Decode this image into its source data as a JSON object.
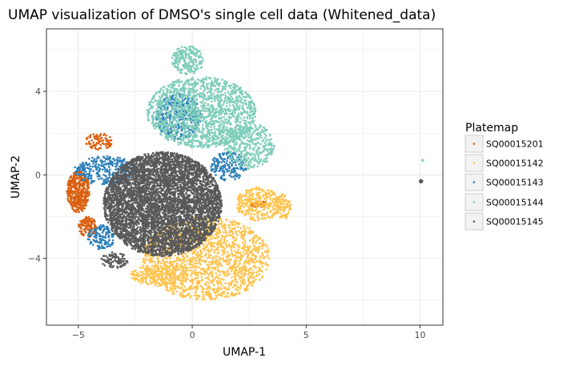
{
  "chart_data": {
    "type": "scatter",
    "title": "UMAP visualization of DMSO's single cell data (Whitened_data)",
    "xlabel": "UMAP-1",
    "ylabel": "UMAP-2",
    "xlim": [
      -6.4,
      11.0
    ],
    "ylim": [
      -7.2,
      7.0
    ],
    "x_ticks": [
      -5,
      0,
      5,
      10
    ],
    "x_tick_labels": [
      "−5",
      "0",
      "5",
      "10"
    ],
    "y_ticks": [
      -4,
      0,
      4
    ],
    "y_tick_labels": [
      "−4",
      "0",
      "4"
    ],
    "grid": true,
    "legend_placement": "right",
    "legend": {
      "title": "Platemap",
      "entries": [
        "SQ00015201",
        "SQ00015142",
        "SQ00015143",
        "SQ00015144",
        "SQ00015145"
      ]
    },
    "series": [
      {
        "name": "SQ00015201",
        "color": "#d95f0e",
        "regions": [
          {
            "cx": -5.0,
            "cy": -0.8,
            "rx": 0.5,
            "ry": 1.0,
            "n": 380
          },
          {
            "cx": -4.6,
            "cy": -2.5,
            "rx": 0.4,
            "ry": 0.5,
            "n": 120
          },
          {
            "cx": -4.1,
            "cy": 1.6,
            "rx": 0.6,
            "ry": 0.4,
            "n": 90
          },
          {
            "cx": 2.9,
            "cy": -1.4,
            "rx": 0.35,
            "ry": 0.15,
            "n": 50
          }
        ]
      },
      {
        "name": "SQ00015142",
        "color": "#fec44f",
        "regions": [
          {
            "cx": 0.6,
            "cy": -4.0,
            "rx": 2.8,
            "ry": 2.0,
            "n": 1700
          },
          {
            "cx": 2.9,
            "cy": -1.4,
            "rx": 1.0,
            "ry": 0.8,
            "n": 320
          },
          {
            "cx": 4.0,
            "cy": -1.5,
            "rx": 0.35,
            "ry": 0.6,
            "n": 90
          },
          {
            "cx": -1.5,
            "cy": -4.8,
            "rx": 1.2,
            "ry": 0.5,
            "n": 220
          }
        ]
      },
      {
        "name": "SQ00015143",
        "color": "#2c7fb8",
        "regions": [
          {
            "cx": -3.8,
            "cy": 0.2,
            "rx": 1.4,
            "ry": 0.7,
            "n": 320
          },
          {
            "cx": -0.6,
            "cy": 2.8,
            "rx": 1.0,
            "ry": 1.1,
            "n": 360
          },
          {
            "cx": 1.6,
            "cy": 0.4,
            "rx": 0.8,
            "ry": 0.7,
            "n": 180
          },
          {
            "cx": -4.0,
            "cy": -3.0,
            "rx": 0.6,
            "ry": 0.6,
            "n": 140
          }
        ]
      },
      {
        "name": "SQ00015144",
        "color": "#7fcdbb",
        "regions": [
          {
            "cx": 0.4,
            "cy": 3.0,
            "rx": 2.4,
            "ry": 1.7,
            "n": 1500
          },
          {
            "cx": -0.2,
            "cy": 5.5,
            "rx": 0.7,
            "ry": 0.7,
            "n": 220
          },
          {
            "cx": 2.5,
            "cy": 1.4,
            "rx": 1.1,
            "ry": 1.1,
            "n": 380
          },
          {
            "cx": 10.1,
            "cy": 0.7,
            "rx": 0.05,
            "ry": 0.05,
            "n": 5
          }
        ]
      },
      {
        "name": "SQ00015145",
        "color": "#595959",
        "regions": [
          {
            "cx": -1.3,
            "cy": -1.4,
            "rx": 2.6,
            "ry": 2.5,
            "n": 5200
          },
          {
            "cx": -3.4,
            "cy": -4.1,
            "rx": 0.6,
            "ry": 0.4,
            "n": 90
          },
          {
            "cx": 10.05,
            "cy": -0.3,
            "rx": 0.07,
            "ry": 0.06,
            "n": 18
          }
        ]
      }
    ]
  }
}
